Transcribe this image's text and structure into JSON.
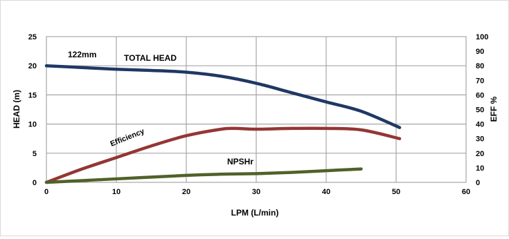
{
  "chart_data": {
    "type": "line",
    "title": "",
    "xlabel": "LPM (L/min)",
    "ylabel": "HEAD (m)",
    "y2label": "EFF %",
    "xlim": [
      0,
      60
    ],
    "ylim": [
      0,
      25
    ],
    "y2lim": [
      0,
      100
    ],
    "x_ticks": [
      "0",
      "10",
      "20",
      "30",
      "40",
      "50",
      "60"
    ],
    "y_ticks": [
      "0",
      "5",
      "10",
      "15",
      "20",
      "25"
    ],
    "y2_ticks": [
      "0",
      "10",
      "20",
      "30",
      "40",
      "50",
      "60",
      "70",
      "80",
      "90",
      "100"
    ],
    "grid": true,
    "series": [
      {
        "name": "TOTAL HEAD",
        "axis": "left",
        "color": "#1f3864",
        "points": [
          [
            0,
            20.0
          ],
          [
            5,
            19.7
          ],
          [
            10,
            19.4
          ],
          [
            15,
            19.2
          ],
          [
            20,
            18.9
          ],
          [
            25,
            18.2
          ],
          [
            30,
            17.0
          ],
          [
            35,
            15.4
          ],
          [
            40,
            13.8
          ],
          [
            45,
            12.2
          ],
          [
            50.5,
            9.4
          ]
        ]
      },
      {
        "name": "Efficiency",
        "axis": "right",
        "color": "#943634",
        "points": [
          [
            0,
            0
          ],
          [
            5,
            9
          ],
          [
            10,
            17
          ],
          [
            15,
            25
          ],
          [
            20,
            32
          ],
          [
            25,
            36.5
          ],
          [
            27,
            37
          ],
          [
            30,
            36.5
          ],
          [
            35,
            37
          ],
          [
            40,
            37
          ],
          [
            45,
            36
          ],
          [
            50.5,
            30
          ]
        ]
      },
      {
        "name": "NPSHr",
        "axis": "left",
        "color": "#4f6228",
        "points": [
          [
            0,
            0
          ],
          [
            10,
            0.6
          ],
          [
            20,
            1.2
          ],
          [
            25,
            1.4
          ],
          [
            30,
            1.5
          ],
          [
            35,
            1.7
          ],
          [
            40,
            2.0
          ],
          [
            45,
            2.3
          ]
        ]
      }
    ],
    "annotations": {
      "impeller": "122mm",
      "total_head": "TOTAL HEAD",
      "efficiency": "Efficiency",
      "npshr": "NPSHr"
    }
  }
}
